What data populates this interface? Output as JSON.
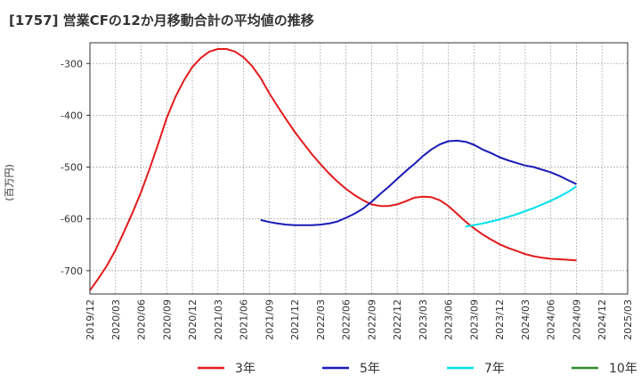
{
  "title": "[1757]  営業CFの12か月移動合計の平均値の推移",
  "chart_data": {
    "type": "line",
    "title": "[1757]  営業CFの12か月移動合計の平均値の推移",
    "ylabel": "(百万円)",
    "xlabel": "",
    "ylim": [
      -745,
      -260
    ],
    "yticks": [
      -300,
      -400,
      -500,
      -600,
      -700
    ],
    "x_ticks": [
      "2019/12",
      "2020/03",
      "2020/06",
      "2020/09",
      "2020/12",
      "2021/03",
      "2021/06",
      "2021/09",
      "2021/12",
      "2022/03",
      "2022/06",
      "2022/09",
      "2022/12",
      "2023/03",
      "2023/06",
      "2023/09",
      "2023/12",
      "2024/03",
      "2024/06",
      "2024/09",
      "2024/12",
      "2025/03"
    ],
    "grid": true,
    "legend_position": "bottom",
    "series": [
      {
        "name": "3年",
        "color": "#e31a1c",
        "x": [
          "2019/12",
          "2020/01",
          "2020/02",
          "2020/03",
          "2020/04",
          "2020/05",
          "2020/06",
          "2020/07",
          "2020/08",
          "2020/09",
          "2020/10",
          "2020/11",
          "2020/12",
          "2021/01",
          "2021/02",
          "2021/03",
          "2021/04",
          "2021/05",
          "2021/06",
          "2021/07",
          "2021/08",
          "2021/09",
          "2021/10",
          "2021/11",
          "2021/12",
          "2022/01",
          "2022/02",
          "2022/03",
          "2022/04",
          "2022/05",
          "2022/06",
          "2022/07",
          "2022/08",
          "2022/09",
          "2022/10",
          "2022/11",
          "2022/12",
          "2023/01",
          "2023/02",
          "2023/03",
          "2023/04",
          "2023/05",
          "2023/06",
          "2023/07",
          "2023/08",
          "2023/09",
          "2023/10",
          "2023/11",
          "2023/12",
          "2024/01",
          "2024/02",
          "2024/03",
          "2024/04",
          "2024/05",
          "2024/06",
          "2024/07",
          "2024/08",
          "2024/09"
        ],
        "values": [
          -738,
          -715,
          -690,
          -660,
          -625,
          -588,
          -548,
          -503,
          -455,
          -405,
          -365,
          -333,
          -307,
          -289,
          -277,
          -272,
          -272,
          -277,
          -288,
          -305,
          -328,
          -357,
          -383,
          -408,
          -432,
          -454,
          -475,
          -494,
          -512,
          -528,
          -542,
          -554,
          -564,
          -572,
          -575,
          -575,
          -572,
          -566,
          -559,
          -557,
          -558,
          -564,
          -575,
          -590,
          -605,
          -618,
          -630,
          -640,
          -649,
          -656,
          -662,
          -668,
          -672,
          -675,
          -677,
          -678,
          -679,
          -680
        ]
      },
      {
        "name": "5年",
        "color": "#1a1ab8",
        "x": [
          "2021/08",
          "2021/09",
          "2021/10",
          "2021/11",
          "2021/12",
          "2022/01",
          "2022/02",
          "2022/03",
          "2022/04",
          "2022/05",
          "2022/06",
          "2022/07",
          "2022/08",
          "2022/09",
          "2022/10",
          "2022/11",
          "2022/12",
          "2023/01",
          "2023/02",
          "2023/03",
          "2023/04",
          "2023/05",
          "2023/06",
          "2023/07",
          "2023/08",
          "2023/09",
          "2023/10",
          "2023/11",
          "2023/12",
          "2024/01",
          "2024/02",
          "2024/03",
          "2024/04",
          "2024/05",
          "2024/06",
          "2024/07",
          "2024/08",
          "2024/09"
        ],
        "values": [
          -602,
          -606,
          -609,
          -611,
          -612,
          -612,
          -612,
          -611,
          -609,
          -605,
          -598,
          -590,
          -580,
          -567,
          -552,
          -538,
          -523,
          -508,
          -494,
          -479,
          -466,
          -456,
          -450,
          -449,
          -451,
          -457,
          -466,
          -473,
          -481,
          -487,
          -492,
          -497,
          -500,
          -505,
          -510,
          -517,
          -525,
          -533
        ]
      },
      {
        "name": "7年",
        "color": "#00e0f0",
        "x": [
          "2023/08",
          "2023/09",
          "2023/10",
          "2023/11",
          "2023/12",
          "2024/01",
          "2024/02",
          "2024/03",
          "2024/04",
          "2024/05",
          "2024/06",
          "2024/07",
          "2024/08",
          "2024/09"
        ],
        "values": [
          -615,
          -612,
          -609,
          -605,
          -601,
          -596,
          -591,
          -585,
          -579,
          -572,
          -565,
          -557,
          -548,
          -537
        ]
      },
      {
        "name": "10年",
        "color": "#2e8b2e",
        "x": [],
        "values": []
      }
    ]
  }
}
